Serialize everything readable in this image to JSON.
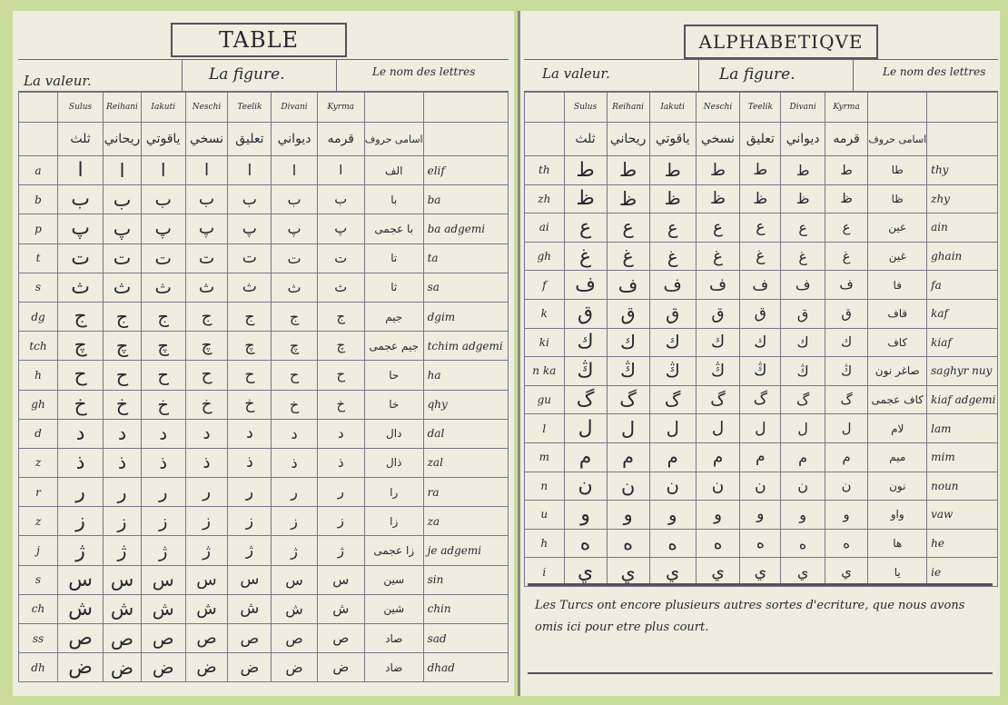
{
  "left_page": {
    "title": "TABLE",
    "header": {
      "valeur": "La valeur.",
      "figure": "La figure.",
      "nom": "Le nom des lettres"
    },
    "script_names": [
      "Sulus",
      "Reihani",
      "Iakuti",
      "Neschi",
      "Teelik",
      "Divani",
      "Kyrma"
    ],
    "script_names_arabic": [
      "ثلث",
      "ريحاني",
      "ياقوتي",
      "نسخي",
      "تعليق",
      "ديواني",
      "قرمه"
    ],
    "names_header_arabic": "اسامی حروف",
    "rows": [
      {
        "valeur": "a",
        "letter": "ا",
        "arabic_name": "الف",
        "name": "elif"
      },
      {
        "valeur": "b",
        "letter": "ب",
        "arabic_name": "با",
        "name": "ba"
      },
      {
        "valeur": "p",
        "letter": "پ",
        "arabic_name": "با عجمی",
        "name": "ba adgemi"
      },
      {
        "valeur": "t",
        "letter": "ت",
        "arabic_name": "تا",
        "name": "ta"
      },
      {
        "valeur": "s",
        "letter": "ث",
        "arabic_name": "ثا",
        "name": "sa"
      },
      {
        "valeur": "dg",
        "letter": "ج",
        "arabic_name": "جيم",
        "name": "dgim"
      },
      {
        "valeur": "tch",
        "letter": "چ",
        "arabic_name": "جيم عجمی",
        "name": "tchim adgemi"
      },
      {
        "valeur": "h",
        "letter": "ح",
        "arabic_name": "حا",
        "name": "ha"
      },
      {
        "valeur": "gh",
        "letter": "خ",
        "arabic_name": "خا",
        "name": "qhy"
      },
      {
        "valeur": "d",
        "letter": "د",
        "arabic_name": "دال",
        "name": "dal"
      },
      {
        "valeur": "z",
        "letter": "ذ",
        "arabic_name": "ذال",
        "name": "zal"
      },
      {
        "valeur": "r",
        "letter": "ر",
        "arabic_name": "را",
        "name": "ra"
      },
      {
        "valeur": "z",
        "letter": "ز",
        "arabic_name": "زا",
        "name": "za"
      },
      {
        "valeur": "j",
        "letter": "ژ",
        "arabic_name": "زا عجمی",
        "name": "je adgemi"
      },
      {
        "valeur": "s",
        "letter": "س",
        "arabic_name": "سين",
        "name": "sin"
      },
      {
        "valeur": "ch",
        "letter": "ش",
        "arabic_name": "شين",
        "name": "chin"
      },
      {
        "valeur": "ss",
        "letter": "ص",
        "arabic_name": "صاد",
        "name": "sad"
      },
      {
        "valeur": "dh",
        "letter": "ض",
        "arabic_name": "ضاد",
        "name": "dhad"
      }
    ]
  },
  "right_page": {
    "title": "ALPHABETIQVE",
    "header": {
      "valeur": "La valeur.",
      "figure": "La figure.",
      "nom": "Le nom des lettres"
    },
    "script_names": [
      "Sulus",
      "Reihani",
      "Iakuti",
      "Neschi",
      "Teelik",
      "Divani",
      "Kyrma"
    ],
    "script_names_arabic": [
      "ثلث",
      "ريحاني",
      "ياقوتي",
      "نسخي",
      "تعليق",
      "ديواني",
      "قرمه"
    ],
    "names_header_arabic": "اسامی حروف",
    "rows": [
      {
        "valeur": "th",
        "letter": "ط",
        "arabic_name": "طا",
        "name": "thy"
      },
      {
        "valeur": "zh",
        "letter": "ظ",
        "arabic_name": "ظا",
        "name": "zhy"
      },
      {
        "valeur": "ai",
        "letter": "ع",
        "arabic_name": "عين",
        "name": "ain"
      },
      {
        "valeur": "gh",
        "letter": "غ",
        "arabic_name": "غين",
        "name": "ghain"
      },
      {
        "valeur": "f",
        "letter": "ف",
        "arabic_name": "فا",
        "name": "fa"
      },
      {
        "valeur": "k",
        "letter": "ق",
        "arabic_name": "قاف",
        "name": "kaf"
      },
      {
        "valeur": "ki",
        "letter": "ك",
        "arabic_name": "كاف",
        "name": "kiaf"
      },
      {
        "valeur": "n ka",
        "letter": "ڭ",
        "arabic_name": "صاغر نون",
        "name": "saghyr nuy"
      },
      {
        "valeur": "gu",
        "letter": "گ",
        "arabic_name": "كاف عجمی",
        "name": "kiaf adgemi"
      },
      {
        "valeur": "l",
        "letter": "ل",
        "arabic_name": "لام",
        "name": "lam"
      },
      {
        "valeur": "m",
        "letter": "م",
        "arabic_name": "ميم",
        "name": "mim"
      },
      {
        "valeur": "n",
        "letter": "ن",
        "arabic_name": "نون",
        "name": "noun"
      },
      {
        "valeur": "u",
        "letter": "و",
        "arabic_name": "واو",
        "name": "vaw"
      },
      {
        "valeur": "h",
        "letter": "ه",
        "arabic_name": "ها",
        "name": "he"
      },
      {
        "valeur": "i",
        "letter": "ي",
        "arabic_name": "يا",
        "name": "ie"
      }
    ],
    "note": "Les Turcs ont encore plusieurs autres sortes d'ecriture, que nous avons omis ici pour etre plus court."
  },
  "colors": {
    "paper": "#efede0",
    "frame": "#c9dc9c",
    "ink": "#2a2630"
  }
}
